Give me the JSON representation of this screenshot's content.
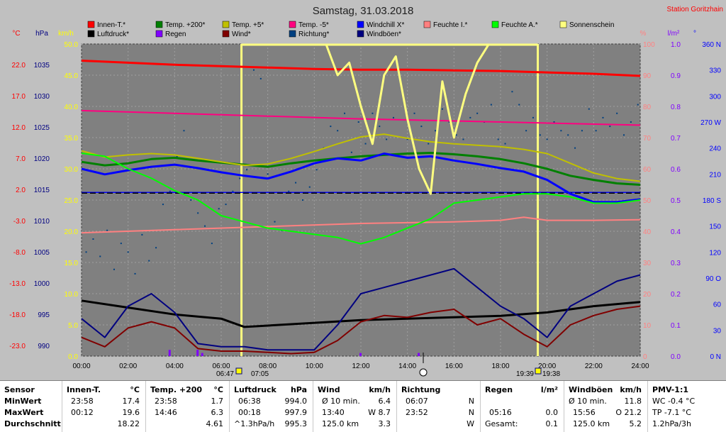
{
  "station": "Station Goritzhain",
  "chart_data": {
    "type": "line",
    "title": "Samstag, 31.03.2018",
    "x_ticks": [
      "00:00",
      "02:00",
      "04:00",
      "06:00",
      "08:00",
      "10:00",
      "12:00",
      "14:00",
      "16:00",
      "18:00",
      "20:00",
      "22:00",
      "24:00"
    ],
    "x_range_hours": [
      0,
      24
    ],
    "sunrise": "06:47",
    "sunrise_end": "07:05",
    "sunset": "19:39",
    "sunset_end": "19:38",
    "axes": {
      "temp": {
        "unit": "°C",
        "ticks": [
          "22.0",
          "17.0",
          "12.0",
          "7.0",
          "2.0",
          "-3.0",
          "-8.0",
          "-13.0",
          "-18.0",
          "-23.0"
        ],
        "range": [
          -23,
          22
        ],
        "color": "#ff0000"
      },
      "pressure": {
        "unit": "hPa",
        "ticks": [
          "1035",
          "1030",
          "1025",
          "1020",
          "1015",
          "1010",
          "1005",
          "1000",
          "995",
          "990"
        ],
        "range": [
          990,
          1035
        ],
        "color": "#000080"
      },
      "wind": {
        "unit": "km/h",
        "ticks": [
          "50.0",
          "45.0",
          "40.0",
          "35.0",
          "30.0",
          "25.0",
          "20.0",
          "15.0",
          "10.0",
          "5.0",
          "0.0"
        ],
        "range": [
          0,
          50
        ],
        "color": "#ffff00"
      },
      "humidity": {
        "unit": "%",
        "ticks": [
          "100",
          "90",
          "80",
          "70",
          "60",
          "50",
          "40",
          "30",
          "20",
          "10",
          "0"
        ],
        "range": [
          0,
          100
        ],
        "color": "#ff8080"
      },
      "rain": {
        "unit": "l/m²",
        "ticks": [
          "1.0",
          "0.9",
          "0.8",
          "0.7",
          "0.6",
          "0.5",
          "0.4",
          "0.3",
          "0.2",
          "0.1",
          "0.0"
        ],
        "range": [
          0,
          1
        ],
        "color": "#8000ff"
      },
      "direction": {
        "unit": "°",
        "ticks": [
          "360 N",
          "330",
          "300",
          "270 W",
          "240",
          "210",
          "180 S",
          "150",
          "120",
          "90 O",
          "60",
          "30",
          "0 N"
        ],
        "range": [
          0,
          360
        ],
        "color": "#0000ff"
      }
    },
    "legend": [
      {
        "name": "Innen-T.*",
        "color": "#ff0000"
      },
      {
        "name": "Temp. +200*",
        "color": "#008000"
      },
      {
        "name": "Temp. +5*",
        "color": "#c0c000"
      },
      {
        "name": "Temp. -5*",
        "color": "#ff0080"
      },
      {
        "name": "Windchill X*",
        "color": "#0000ff"
      },
      {
        "name": "Feuchte I.*",
        "color": "#ff8080"
      },
      {
        "name": "Feuchte A.*",
        "color": "#00ff00"
      },
      {
        "name": "Sonnenschein",
        "color": "#ffff80"
      },
      {
        "name": "Luftdruck*",
        "color": "#000000"
      },
      {
        "name": "Regen",
        "color": "#8000ff"
      },
      {
        "name": "Wind*",
        "color": "#800000"
      },
      {
        "name": "Richtung*",
        "color": "#004080"
      },
      {
        "name": "Windböen*",
        "color": "#000080"
      }
    ],
    "series": [
      {
        "name": "Innen-T.*",
        "axis": "temp",
        "color": "#ff0000",
        "width": 3,
        "x": [
          0,
          2,
          4,
          6,
          8,
          10,
          12,
          14,
          16,
          18,
          20,
          22,
          24
        ],
        "y": [
          19.6,
          19.3,
          19.0,
          18.8,
          18.6,
          18.4,
          18.3,
          18.3,
          18.2,
          18.1,
          17.9,
          17.7,
          17.4
        ]
      },
      {
        "name": "Temp. +200*",
        "axis": "temp",
        "color": "#008000",
        "width": 3,
        "x": [
          0,
          1,
          2,
          3,
          4,
          5,
          6,
          7,
          8,
          9,
          10,
          11,
          12,
          13,
          14,
          15,
          16,
          17,
          18,
          19,
          20,
          21,
          22,
          23,
          24
        ],
        "y": [
          5.0,
          4.5,
          4.8,
          5.4,
          5.6,
          5.2,
          4.9,
          4.6,
          4.3,
          4.8,
          5.2,
          5.5,
          5.8,
          6.0,
          6.2,
          6.3,
          6.1,
          5.8,
          5.4,
          4.8,
          4.0,
          3.0,
          2.4,
          1.9,
          1.7
        ]
      },
      {
        "name": "Temp. +5*",
        "axis": "temp",
        "color": "#c0c000",
        "width": 2,
        "x": [
          0,
          1,
          2,
          3,
          4,
          5,
          6,
          7,
          8,
          9,
          10,
          11,
          12,
          13,
          14,
          15,
          16,
          17,
          18,
          19,
          20,
          21,
          22,
          23,
          24
        ],
        "y": [
          6.6,
          5.7,
          6.0,
          6.2,
          6.0,
          5.5,
          5.0,
          4.5,
          4.7,
          5.5,
          6.5,
          7.6,
          8.6,
          9.0,
          8.4,
          7.9,
          7.6,
          7.4,
          7.2,
          6.8,
          6.2,
          4.8,
          3.4,
          2.6,
          2.2
        ]
      },
      {
        "name": "Temp. -5*",
        "axis": "temp",
        "color": "#ff0080",
        "width": 2,
        "x": [
          0,
          4,
          8,
          12,
          16,
          20,
          24
        ],
        "y": [
          12.4,
          12.0,
          11.6,
          11.2,
          10.9,
          10.6,
          10.3
        ]
      },
      {
        "name": "Windchill X*",
        "axis": "temp",
        "color": "#0000ff",
        "width": 3,
        "x": [
          0,
          1,
          2,
          3,
          4,
          5,
          6,
          7,
          8,
          9,
          10,
          11,
          12,
          13,
          14,
          15,
          16,
          17,
          18,
          19,
          20,
          21,
          22,
          23,
          24
        ],
        "y": [
          4.0,
          3.2,
          3.8,
          4.3,
          4.6,
          4.1,
          3.5,
          3.0,
          2.6,
          3.6,
          4.8,
          5.5,
          5.2,
          6.2,
          5.6,
          5.8,
          5.2,
          4.7,
          4.1,
          3.6,
          2.4,
          0.4,
          -0.8,
          -0.8,
          -0.4
        ]
      },
      {
        "name": "Feuchte I.*",
        "axis": "humidity",
        "color": "#ff8080",
        "width": 2,
        "x": [
          0,
          4,
          8,
          12,
          16,
          18,
          19,
          20,
          22,
          24
        ],
        "y": [
          39.5,
          40.5,
          41.5,
          42.5,
          43.0,
          43.5,
          44.5,
          43.5,
          43.5,
          43.7
        ]
      },
      {
        "name": "Feuchte A.*",
        "axis": "humidity",
        "color": "#00ff00",
        "width": 2,
        "x": [
          0,
          1,
          2,
          3,
          4,
          5,
          6,
          7,
          8,
          9,
          10,
          11,
          12,
          13,
          14,
          15,
          16,
          17,
          18,
          19,
          20,
          21,
          22,
          23,
          24
        ],
        "y": [
          65,
          64,
          60,
          57,
          53,
          50,
          45,
          43,
          41,
          40,
          39,
          38,
          36,
          38,
          41,
          44,
          49,
          50,
          51,
          52,
          52,
          51,
          49,
          49,
          50
        ]
      },
      {
        "name": "Sonnenschein",
        "axis": "wind",
        "color": "#ffff80",
        "width": 3,
        "x": [
          10.5,
          11,
          11.5,
          12,
          12.5,
          13,
          13.5,
          14,
          14.5,
          15,
          15.5,
          16,
          16.5,
          17,
          17.5
        ],
        "y": [
          50,
          45,
          47,
          40,
          34,
          45,
          48,
          38,
          30,
          26,
          44,
          35,
          42,
          47,
          50
        ]
      },
      {
        "name": "Luftdruck*",
        "axis": "pressure",
        "color": "#000000",
        "width": 3,
        "x": [
          0,
          2,
          4,
          6,
          7,
          8,
          10,
          12,
          14,
          16,
          18,
          20,
          22,
          24
        ],
        "y": [
          998,
          997,
          996,
          995.4,
          994.2,
          994.4,
          994.8,
          995.2,
          995.4,
          995.6,
          995.8,
          996.3,
          997.2,
          997.8
        ]
      },
      {
        "name": "Wind*",
        "axis": "wind",
        "color": "#800000",
        "width": 2,
        "x": [
          0,
          1,
          2,
          3,
          4,
          5,
          6,
          7,
          8,
          9,
          10,
          11,
          12,
          13,
          14,
          15,
          16,
          17,
          18,
          19,
          20,
          21,
          22,
          23,
          24
        ],
        "y": [
          3,
          1.5,
          4.5,
          5.5,
          4.5,
          1.2,
          0.8,
          0.8,
          0.6,
          0.4,
          0.6,
          2.5,
          5.5,
          6.5,
          6.2,
          7.0,
          7.5,
          5.0,
          6.0,
          3.5,
          1.5,
          5.0,
          6.5,
          7.5,
          8.0
        ]
      },
      {
        "name": "Windböen*",
        "axis": "wind",
        "color": "#000080",
        "width": 2,
        "x": [
          0,
          1,
          2,
          3,
          4,
          5,
          6,
          7,
          8,
          9,
          10,
          11,
          12,
          13,
          14,
          15,
          16,
          17,
          18,
          19,
          20,
          21,
          22,
          23,
          24
        ],
        "y": [
          6,
          3,
          8,
          10,
          7,
          2,
          1.5,
          1.5,
          1,
          1,
          1,
          5,
          10,
          11,
          12,
          13,
          14,
          11,
          8,
          6,
          3,
          8,
          10,
          12,
          13
        ]
      }
    ],
    "reference_lines": [
      {
        "name": "Windchill X*",
        "axis": "temp",
        "value": 0.6,
        "color": "#0000ff",
        "style": "solid"
      },
      {
        "name": "Luftdruck*",
        "axis": "pressure",
        "value": 1013.5,
        "color": "#000000",
        "style": "dashed"
      }
    ],
    "scatter": {
      "name": "Richtung*",
      "axis": "direction",
      "color": "#004080",
      "x": [
        0.2,
        0.5,
        0.8,
        1.1,
        1.4,
        1.7,
        2.0,
        2.3,
        2.6,
        2.9,
        3.2,
        3.5,
        3.8,
        4.1,
        4.4,
        4.7,
        5.0,
        5.3,
        5.6,
        5.9,
        6.2,
        6.5,
        6.8,
        7.1,
        7.4,
        7.7,
        8.0,
        8.3,
        8.6,
        8.9,
        9.2,
        9.5,
        9.8,
        10.1,
        10.4,
        10.7,
        11.0,
        11.3,
        11.6,
        11.9,
        12.2,
        12.5,
        12.8,
        13.1,
        13.4,
        13.7,
        14.0,
        14.3,
        14.6,
        14.9,
        15.2,
        15.5,
        15.8,
        16.1,
        16.4,
        16.7,
        17.0,
        17.3,
        17.6,
        17.9,
        18.2,
        18.5,
        18.8,
        19.1,
        19.4,
        19.7,
        20.0,
        20.3,
        20.6,
        20.9,
        21.2,
        21.5,
        21.8,
        22.1,
        22.4,
        22.7,
        23.0,
        23.3,
        23.6,
        23.9
      ],
      "y": [
        120,
        135,
        115,
        145,
        100,
        130,
        120,
        95,
        140,
        110,
        125,
        175,
        190,
        230,
        260,
        180,
        165,
        150,
        130,
        170,
        175,
        190,
        205,
        215,
        330,
        320,
        210,
        155,
        145,
        190,
        200,
        180,
        195,
        215,
        240,
        265,
        260,
        280,
        235,
        270,
        245,
        280,
        265,
        250,
        275,
        230,
        250,
        280,
        265,
        245,
        260,
        285,
        270,
        255,
        250,
        275,
        280,
        270,
        290,
        250,
        245,
        305,
        290,
        260,
        275,
        255,
        250,
        270,
        260,
        255,
        240,
        260,
        285,
        260,
        275,
        265,
        280,
        255,
        270,
        290
      ]
    },
    "rain_bars": {
      "name": "Regen",
      "axis": "rain",
      "color": "#8000ff",
      "x": [
        3.8,
        5.0,
        5.2,
        12.0,
        14.5
      ],
      "y": [
        0.02,
        0.02,
        0.01,
        0.01,
        0.01
      ]
    },
    "sunshine_block": {
      "start_hours": 6.87,
      "end_hours": 19.6
    }
  },
  "summary": {
    "sensor": {
      "header": "Sensor",
      "rows": [
        "MinWert",
        "MaxWert",
        "Durchschnitt"
      ]
    },
    "innen": {
      "header": "Innen-T.",
      "unit": "°C",
      "rows": [
        [
          "23:58",
          "17.4"
        ],
        [
          "00:12",
          "19.6"
        ],
        [
          "",
          "18.22"
        ]
      ]
    },
    "temp200": {
      "header": "Temp. +200",
      "unit": "°C",
      "rows": [
        [
          "23:58",
          "1.7"
        ],
        [
          "14:46",
          "6.3"
        ],
        [
          "",
          "4.61"
        ]
      ]
    },
    "luftdruck": {
      "header": "Luftdruck",
      "unit": "hPa",
      "rows": [
        [
          "06:38",
          "994.0"
        ],
        [
          "00:18",
          "997.9"
        ],
        [
          "^1.3hPa/h",
          "995.3"
        ]
      ]
    },
    "wind": {
      "header": "Wind",
      "unit": "km/h",
      "rows": [
        [
          "Ø 10 min.",
          "6.4"
        ],
        [
          "13:40",
          "W 8.7"
        ],
        [
          "125.0 km",
          "3.3"
        ]
      ]
    },
    "richtung": {
      "header": "Richtung",
      "rows": [
        [
          "06:07",
          "N"
        ],
        [
          "23:52",
          "N"
        ],
        [
          "",
          "W"
        ]
      ]
    },
    "regen": {
      "header": "Regen",
      "unit": "l/m²",
      "rows": [
        [
          "",
          ""
        ],
        [
          "05:16",
          "0.0"
        ],
        [
          "Gesamt:",
          "0.1"
        ]
      ]
    },
    "boeen": {
      "header": "Windböen",
      "unit": "km/h",
      "rows": [
        [
          "Ø 10 min.",
          "11.8"
        ],
        [
          "15:56",
          "O 21.2"
        ],
        [
          "125.0 km",
          "5.2"
        ]
      ]
    },
    "pmv": {
      "header": "PMV-1:1",
      "rows": [
        "WC -0.4 °C",
        "TP -7.1 °C",
        "1.2hPa/3h"
      ]
    }
  }
}
